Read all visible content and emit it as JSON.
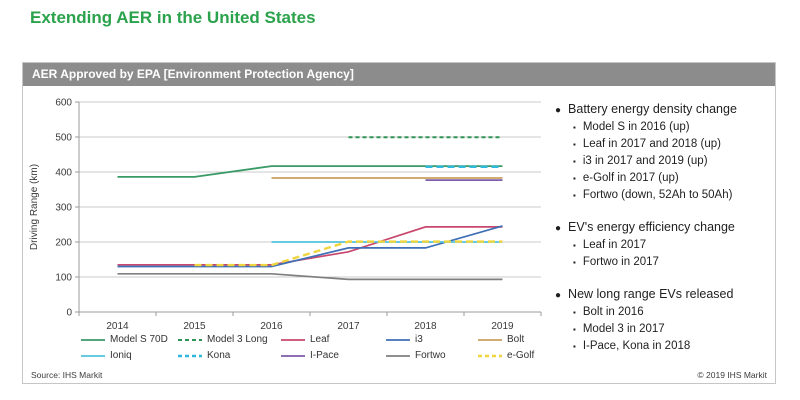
{
  "page_title": "Extending AER in the United States",
  "panel": {
    "header": "AER Approved by EPA [Environment Protection Agency]",
    "source": "Source: IHS Markit",
    "copyright": "© 2019 IHS Markit"
  },
  "chart_data": {
    "type": "line",
    "title": "AER Approved by EPA [Environment Protection Agency]",
    "xlabel": "",
    "ylabel": "Driving Range (km)",
    "ylim": [
      0,
      600
    ],
    "ytick_interval": 100,
    "grid": true,
    "legend_position": "bottom",
    "x": [
      2014,
      2015,
      2016,
      2017,
      2018,
      2019
    ],
    "series": [
      {
        "name": "Model S 70D",
        "color": "#3a9a66",
        "dash": null,
        "width": 1.8,
        "values": [
          386,
          386,
          417,
          417,
          417,
          417
        ]
      },
      {
        "name": "Model 3 Long",
        "color": "#2e9455",
        "dash": [
          4,
          3
        ],
        "width": 2.0,
        "values": [
          null,
          null,
          null,
          499,
          499,
          499
        ]
      },
      {
        "name": "Leaf",
        "color": "#c9476f",
        "dash": null,
        "width": 1.7,
        "values": [
          135,
          135,
          135,
          172,
          243,
          243
        ]
      },
      {
        "name": "i3",
        "color": "#3f6fb5",
        "dash": null,
        "width": 1.7,
        "values": [
          130,
          130,
          130,
          183,
          183,
          246
        ]
      },
      {
        "name": "Bolt",
        "color": "#c9a05e",
        "dash": null,
        "width": 1.7,
        "values": [
          null,
          null,
          383,
          383,
          383,
          383
        ]
      },
      {
        "name": "Ioniq",
        "color": "#53c2dc",
        "dash": null,
        "width": 1.7,
        "values": [
          null,
          null,
          200,
          200,
          200,
          200
        ]
      },
      {
        "name": "Kona",
        "color": "#30b9dc",
        "dash": [
          7,
          4
        ],
        "width": 2.4,
        "values": [
          null,
          null,
          null,
          null,
          415,
          415
        ]
      },
      {
        "name": "I-Pace",
        "color": "#7d5ca8",
        "dash": null,
        "width": 1.7,
        "values": [
          null,
          null,
          null,
          null,
          377,
          377
        ]
      },
      {
        "name": "Fortwo",
        "color": "#7f7f7f",
        "dash": null,
        "width": 1.7,
        "values": [
          109,
          109,
          109,
          93,
          93,
          93
        ]
      },
      {
        "name": "e-Golf",
        "color": "#efd53f",
        "dash": [
          7,
          4
        ],
        "width": 2.4,
        "values": [
          null,
          134,
          134,
          201,
          201,
          201
        ]
      }
    ]
  },
  "notes": [
    {
      "title": "Battery energy density change",
      "items": [
        "Model S in 2016 (up)",
        "Leaf in 2017 and 2018 (up)",
        "i3 in 2017 and 2019 (up)",
        "e-Golf in 2017 (up)",
        "Fortwo (down, 52Ah to 50Ah)"
      ]
    },
    {
      "title": "EV's energy efficiency change",
      "items": [
        "Leaf in 2017",
        "Fortwo in 2017"
      ]
    },
    {
      "title": "New long range EVs released",
      "items": [
        "Bolt in 2016",
        "Model 3 in 2017",
        "I-Pace, Kona in 2018"
      ]
    }
  ]
}
